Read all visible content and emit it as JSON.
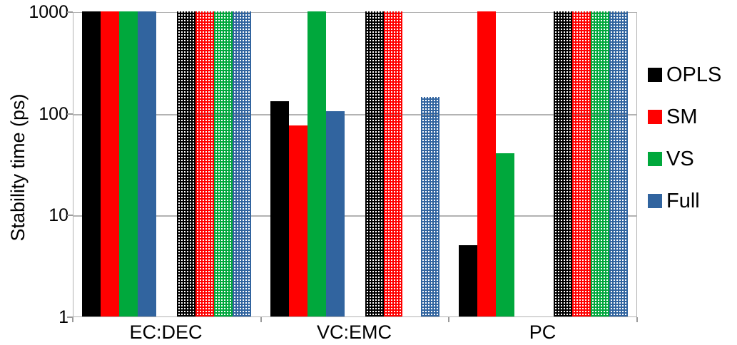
{
  "chart_data": {
    "type": "bar",
    "title": "",
    "ylabel": "Stability time (ps)",
    "xlabel": "",
    "yscale": "log",
    "ylim": [
      1,
      1000
    ],
    "yticks": [
      1000,
      100,
      10,
      1
    ],
    "grid": true,
    "categories": [
      "EC:DEC",
      "VC:EMC",
      "PC"
    ],
    "series": [
      {
        "name": "OPLS",
        "fill": "solid",
        "color": "#000000",
        "values": [
          1000,
          130,
          5
        ]
      },
      {
        "name": "SM",
        "fill": "solid",
        "color": "#ff0000",
        "values": [
          1000,
          75,
          1000
        ]
      },
      {
        "name": "VS",
        "fill": "solid",
        "color": "#00a83c",
        "values": [
          1000,
          1000,
          40
        ]
      },
      {
        "name": "Full",
        "fill": "solid",
        "color": "#31649f",
        "values": [
          1000,
          105,
          null
        ]
      },
      {
        "name": "OPLS-hatched",
        "fill": "mesh",
        "color": "#000000",
        "values": [
          1000,
          1000,
          1000
        ]
      },
      {
        "name": "SM-hatched",
        "fill": "mesh",
        "color": "#ff0000",
        "values": [
          1000,
          1000,
          1000
        ]
      },
      {
        "name": "VS-hatched",
        "fill": "mesh",
        "color": "#00a83c",
        "values": [
          1000,
          null,
          1000
        ]
      },
      {
        "name": "Full-hatched",
        "fill": "mesh",
        "color": "#31649f",
        "values": [
          1000,
          145,
          1000
        ]
      }
    ],
    "legend": {
      "position": "right",
      "entries": [
        {
          "label": "OPLS",
          "color": "#000000"
        },
        {
          "label": "SM",
          "color": "#ff0000"
        },
        {
          "label": "VS",
          "color": "#00a83c"
        },
        {
          "label": "Full",
          "color": "#31649f"
        }
      ]
    },
    "colors": {
      "gridline": "#b3b3b3",
      "frame": "#b2b2b2",
      "tick": "#9a9a9a"
    }
  }
}
